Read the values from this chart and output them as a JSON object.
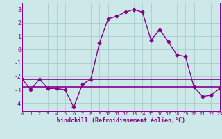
{
  "title": "",
  "xlabel": "Windchill (Refroidissement éolien,°C)",
  "ylabel": "",
  "background_color": "#cce8e8",
  "grid_color": "#aacccc",
  "line_color": "#880088",
  "hours": [
    0,
    1,
    2,
    3,
    4,
    5,
    6,
    7,
    8,
    9,
    10,
    11,
    12,
    13,
    14,
    15,
    16,
    17,
    18,
    19,
    20,
    21,
    22,
    23
  ],
  "windchill": [
    -2.2,
    -3.0,
    -2.2,
    -2.9,
    -2.9,
    -3.0,
    -4.3,
    -2.6,
    -2.2,
    0.5,
    2.3,
    2.5,
    2.8,
    3.0,
    2.8,
    0.7,
    1.5,
    0.6,
    -0.4,
    -0.5,
    -2.8,
    -3.5,
    -3.4,
    -2.9
  ],
  "reference1": [
    -2.2,
    -2.2,
    -2.2,
    -2.2,
    -2.2,
    -2.2,
    -2.2,
    -2.2,
    -2.2,
    -2.2,
    -2.2,
    -2.2,
    -2.2,
    -2.2,
    -2.2,
    -2.2,
    -2.2,
    -2.2,
    -2.2,
    -2.2,
    -2.2,
    -2.2,
    -2.2,
    -2.2
  ],
  "reference2": [
    -2.8,
    -2.8,
    -2.8,
    -2.8,
    -2.8,
    -2.8,
    -2.8,
    -2.8,
    -2.8,
    -2.8,
    -2.8,
    -2.8,
    -2.8,
    -2.8,
    -2.8,
    -2.8,
    -2.8,
    -2.8,
    -2.8,
    -2.8,
    -2.8,
    -2.8,
    -2.8,
    -2.8
  ],
  "ylim": [
    -4.6,
    3.5
  ],
  "yticks": [
    -4,
    -3,
    -2,
    -1,
    0,
    1,
    2,
    3
  ],
  "xlim": [
    0,
    23
  ],
  "xticks": [
    0,
    1,
    2,
    3,
    4,
    5,
    6,
    7,
    8,
    9,
    10,
    11,
    12,
    13,
    14,
    15,
    16,
    17,
    18,
    19,
    20,
    21,
    22,
    23
  ],
  "xtick_labels": [
    "0",
    "1",
    "2",
    "3",
    "4",
    "5",
    "6",
    "7",
    "8",
    "9",
    "10",
    "11",
    "12",
    "13",
    "14",
    "15",
    "16",
    "17",
    "18",
    "19",
    "20",
    "21",
    "22",
    "23"
  ],
  "marker": "D",
  "markersize": 2.5,
  "linewidth": 1.0,
  "ref_linewidth": 1.2,
  "tick_fontsize": 5.0,
  "xlabel_fontsize": 6.0
}
